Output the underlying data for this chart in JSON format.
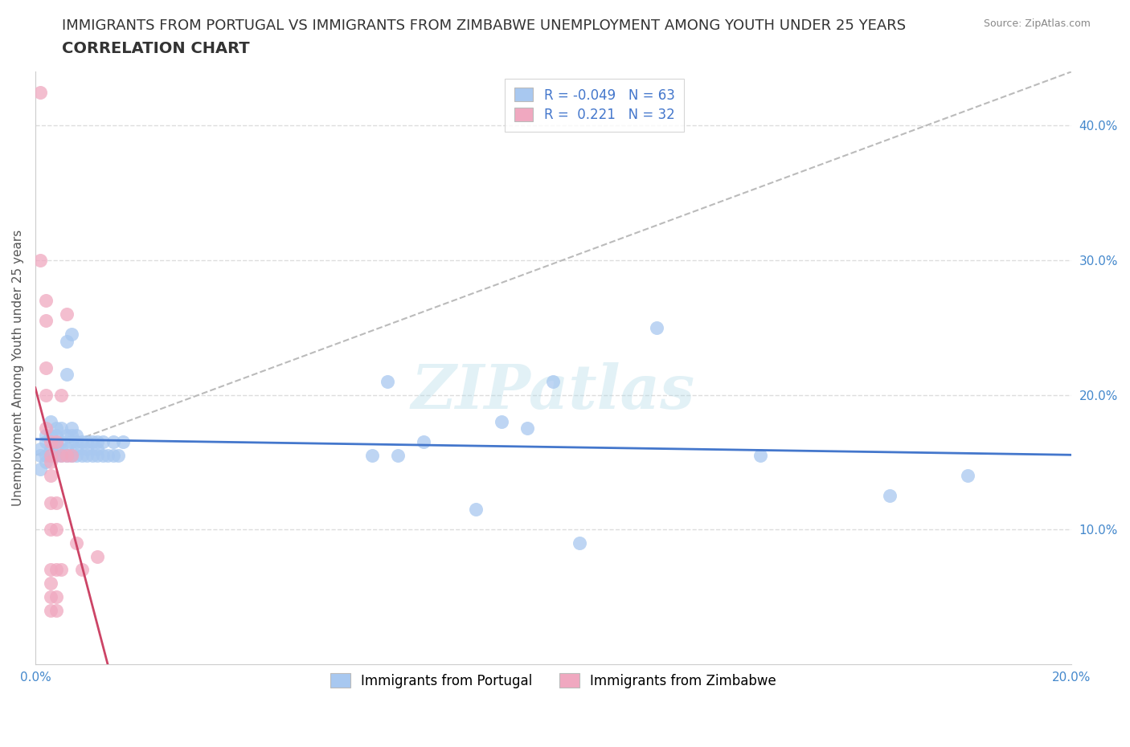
{
  "title_line1": "IMMIGRANTS FROM PORTUGAL VS IMMIGRANTS FROM ZIMBABWE UNEMPLOYMENT AMONG YOUTH UNDER 25 YEARS",
  "title_line2": "CORRELATION CHART",
  "source": "Source: ZipAtlas.com",
  "ylabel": "Unemployment Among Youth under 25 years",
  "xlim": [
    0.0,
    0.2
  ],
  "ylim": [
    0.0,
    0.44
  ],
  "xticks": [
    0.0,
    0.05,
    0.1,
    0.15,
    0.2
  ],
  "yticks": [
    0.1,
    0.2,
    0.3,
    0.4
  ],
  "portugal_color": "#a8c8f0",
  "zimbabwe_color": "#f0a8c0",
  "portugal_line_color": "#4477cc",
  "zimbabwe_line_color": "#cc4466",
  "R_portugal": -0.049,
  "N_portugal": 63,
  "R_zimbabwe": 0.221,
  "N_zimbabwe": 32,
  "portugal_scatter": [
    [
      0.001,
      0.155
    ],
    [
      0.001,
      0.145
    ],
    [
      0.001,
      0.16
    ],
    [
      0.002,
      0.15
    ],
    [
      0.002,
      0.17
    ],
    [
      0.002,
      0.155
    ],
    [
      0.002,
      0.165
    ],
    [
      0.003,
      0.16
    ],
    [
      0.003,
      0.155
    ],
    [
      0.003,
      0.17
    ],
    [
      0.003,
      0.18
    ],
    [
      0.004,
      0.155
    ],
    [
      0.004,
      0.17
    ],
    [
      0.004,
      0.175
    ],
    [
      0.004,
      0.165
    ],
    [
      0.005,
      0.16
    ],
    [
      0.005,
      0.155
    ],
    [
      0.005,
      0.175
    ],
    [
      0.005,
      0.165
    ],
    [
      0.006,
      0.24
    ],
    [
      0.006,
      0.215
    ],
    [
      0.006,
      0.17
    ],
    [
      0.006,
      0.16
    ],
    [
      0.006,
      0.155
    ],
    [
      0.007,
      0.245
    ],
    [
      0.007,
      0.175
    ],
    [
      0.007,
      0.17
    ],
    [
      0.007,
      0.165
    ],
    [
      0.007,
      0.155
    ],
    [
      0.008,
      0.17
    ],
    [
      0.008,
      0.165
    ],
    [
      0.008,
      0.16
    ],
    [
      0.008,
      0.155
    ],
    [
      0.009,
      0.155
    ],
    [
      0.009,
      0.165
    ],
    [
      0.01,
      0.16
    ],
    [
      0.01,
      0.155
    ],
    [
      0.01,
      0.165
    ],
    [
      0.011,
      0.155
    ],
    [
      0.011,
      0.165
    ],
    [
      0.012,
      0.155
    ],
    [
      0.012,
      0.165
    ],
    [
      0.012,
      0.16
    ],
    [
      0.013,
      0.155
    ],
    [
      0.013,
      0.165
    ],
    [
      0.014,
      0.155
    ],
    [
      0.015,
      0.155
    ],
    [
      0.015,
      0.165
    ],
    [
      0.016,
      0.155
    ],
    [
      0.017,
      0.165
    ],
    [
      0.065,
      0.155
    ],
    [
      0.068,
      0.21
    ],
    [
      0.07,
      0.155
    ],
    [
      0.075,
      0.165
    ],
    [
      0.085,
      0.115
    ],
    [
      0.09,
      0.18
    ],
    [
      0.095,
      0.175
    ],
    [
      0.1,
      0.21
    ],
    [
      0.105,
      0.09
    ],
    [
      0.12,
      0.25
    ],
    [
      0.14,
      0.155
    ],
    [
      0.165,
      0.125
    ],
    [
      0.18,
      0.14
    ]
  ],
  "zimbabwe_scatter": [
    [
      0.001,
      0.425
    ],
    [
      0.001,
      0.3
    ],
    [
      0.002,
      0.27
    ],
    [
      0.002,
      0.255
    ],
    [
      0.002,
      0.22
    ],
    [
      0.002,
      0.2
    ],
    [
      0.002,
      0.175
    ],
    [
      0.003,
      0.165
    ],
    [
      0.003,
      0.155
    ],
    [
      0.003,
      0.15
    ],
    [
      0.003,
      0.14
    ],
    [
      0.003,
      0.12
    ],
    [
      0.003,
      0.1
    ],
    [
      0.003,
      0.07
    ],
    [
      0.003,
      0.06
    ],
    [
      0.003,
      0.05
    ],
    [
      0.003,
      0.04
    ],
    [
      0.004,
      0.165
    ],
    [
      0.004,
      0.12
    ],
    [
      0.004,
      0.1
    ],
    [
      0.004,
      0.07
    ],
    [
      0.004,
      0.05
    ],
    [
      0.004,
      0.04
    ],
    [
      0.005,
      0.2
    ],
    [
      0.005,
      0.155
    ],
    [
      0.005,
      0.07
    ],
    [
      0.006,
      0.26
    ],
    [
      0.006,
      0.155
    ],
    [
      0.007,
      0.155
    ],
    [
      0.008,
      0.09
    ],
    [
      0.009,
      0.07
    ],
    [
      0.012,
      0.08
    ]
  ],
  "ref_line": [
    [
      0.0,
      0.155
    ],
    [
      0.2,
      0.44
    ]
  ],
  "watermark": "ZIPatlas",
  "title_fontsize": 13,
  "label_fontsize": 11,
  "tick_fontsize": 11,
  "legend_fontsize": 12
}
